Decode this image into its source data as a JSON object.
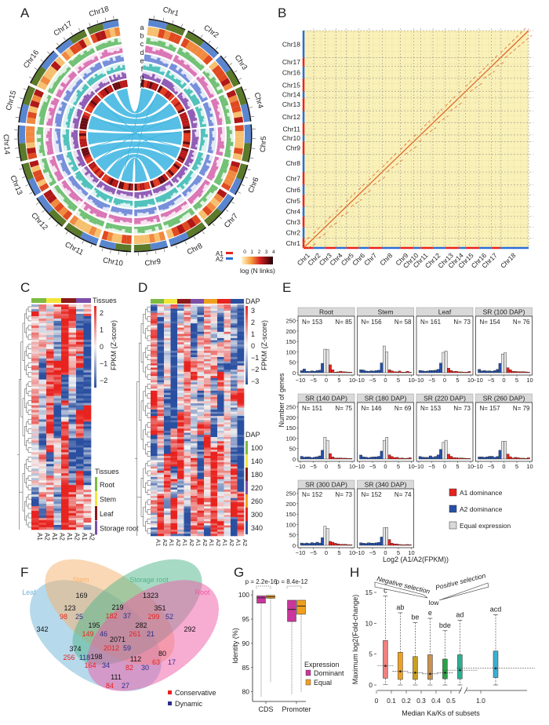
{
  "panels": [
    "A",
    "B",
    "C",
    "D",
    "E",
    "F",
    "G",
    "H"
  ],
  "chart_data": [
    {
      "panel": "A",
      "type": "circos",
      "chromosomes": [
        "Chr1",
        "Chr2",
        "Chr3",
        "Chr4",
        "Chr5",
        "Chr6",
        "Chr7",
        "Chr8",
        "Chr9",
        "Chr10",
        "Chr11",
        "Chr12",
        "Chr13",
        "Chr14",
        "Chr15",
        "Chr16",
        "Chr17",
        "Chr18"
      ],
      "track_labels": [
        "a",
        "b",
        "c",
        "d",
        "e",
        "f",
        "g",
        "h"
      ],
      "subgenome_legend": [
        {
          "name": "A1",
          "color": "#e8231f"
        },
        {
          "name": "A2",
          "color": "#2a6fd6"
        }
      ],
      "colorbar": {
        "label": "log (N links)",
        "ticks": [
          "0",
          "1",
          "2",
          "3",
          "4"
        ]
      },
      "link_color": "#3ab4e0"
    },
    {
      "panel": "B",
      "type": "scatter",
      "title": "",
      "x_ticks": [
        "Chr1",
        "Chr2",
        "Chr3",
        "Chr4",
        "Chr5",
        "Chr6",
        "Chr7",
        "Chr8",
        "Chr9",
        "Chr10",
        "Chr11",
        "Chr12",
        "Chr13",
        "Chr14",
        "Chr15",
        "Chr16",
        "Chr17",
        "Chr18"
      ],
      "y_ticks": [
        "Chr1",
        "Chr2",
        "Chr3",
        "Chr4",
        "Chr5",
        "Chr6",
        "Chr7",
        "Chr8",
        "Chr9",
        "Chr10",
        "Chr11",
        "Chr12",
        "Chr13",
        "Chr14",
        "Chr15",
        "Chr16",
        "Chr17",
        "Chr18"
      ],
      "background": "#faf1b8",
      "diagonal_color": "#e06a2a",
      "grid": true
    },
    {
      "panel": "C",
      "type": "heatmap",
      "column_labels": [
        "A1",
        "A2",
        "A1",
        "A2",
        "A1",
        "A2",
        "A1",
        "A2"
      ],
      "annotation_title": "Tissues",
      "tissue_groups": [
        {
          "name": "Root",
          "color": "#7dbb42"
        },
        {
          "name": "Stem",
          "color": "#f2e53a"
        },
        {
          "name": "Leaf",
          "color": "#8b1a1a"
        },
        {
          "name": "Storage root",
          "color": "#7b4fa8"
        }
      ],
      "colorbar": {
        "label": "FPKM (Z-score)",
        "ticks": [
          "2",
          "1",
          "0",
          "−1",
          "−2"
        ],
        "range": [
          -2.5,
          2.5
        ]
      }
    },
    {
      "panel": "D",
      "type": "heatmap",
      "column_labels": [
        "A1",
        "A2",
        "A1",
        "A2",
        "A1",
        "A2",
        "A1",
        "A2",
        "A1",
        "A2",
        "A1",
        "A2",
        "A1",
        "A2"
      ],
      "annotation_title": "DAP",
      "dap_groups": [
        {
          "name": "100",
          "color": "#7dbb42"
        },
        {
          "name": "140",
          "color": "#f2e53a"
        },
        {
          "name": "180",
          "color": "#8b1a1a"
        },
        {
          "name": "220",
          "color": "#7b4fa8"
        },
        {
          "name": "260",
          "color": "#f0a020"
        },
        {
          "name": "300",
          "color": "#e8231f"
        },
        {
          "name": "340",
          "color": "#2a4fa0"
        }
      ],
      "colorbar": {
        "label": "FPKM (Z-score)",
        "ticks": [
          "3",
          "2",
          "1",
          "0",
          "−1",
          "−2",
          "−3"
        ],
        "range": [
          -3.5,
          3.5
        ]
      }
    },
    {
      "panel": "E",
      "type": "bar",
      "xlabel": "Log2 (A1/A2(FPKM))",
      "ylabel": "Number of genes",
      "ylim": [
        0,
        260
      ],
      "y_ticks": [
        0,
        50,
        100,
        150,
        200,
        250
      ],
      "x_ticks": [
        -10,
        -5,
        0,
        5,
        10
      ],
      "bins": [
        -9.5,
        -8.5,
        -7.5,
        -6.5,
        -5.5,
        -4.5,
        -3.5,
        -2.5,
        -1.5,
        -0.5,
        0.5,
        1.5,
        2.5,
        3.5,
        4.5,
        5.5,
        6.5,
        7.5,
        8.5,
        9.5
      ],
      "legend": [
        {
          "name": "A1 dominance",
          "color": "#e8231f"
        },
        {
          "name": "A2 dominance",
          "color": "#2650a8"
        },
        {
          "name": "Equal expression",
          "color": "#d9d9d9"
        }
      ],
      "facets": [
        {
          "title": "Root",
          "n_left": "N= 153",
          "n_right": "N= 85",
          "values": [
            10,
            18,
            7,
            6,
            9,
            7,
            10,
            12,
            45,
            113,
            112,
            38,
            14,
            3,
            4,
            7,
            5,
            4,
            3,
            3
          ]
        },
        {
          "title": "Stem",
          "n_left": "N= 156",
          "n_right": "N= 58",
          "values": [
            14,
            13,
            8,
            7,
            9,
            8,
            10,
            12,
            47,
            128,
            100,
            14,
            9,
            5,
            4,
            8,
            3,
            3,
            7,
            3
          ]
        },
        {
          "title": "Leaf",
          "n_left": "N= 161",
          "n_right": "N= 73",
          "values": [
            11,
            9,
            7,
            8,
            11,
            10,
            12,
            16,
            46,
            98,
            104,
            22,
            11,
            6,
            7,
            4,
            4,
            3,
            3,
            6
          ]
        },
        {
          "title": "SR (100 DAP)",
          "n_left": "N= 154",
          "n_right": "N= 76",
          "values": [
            16,
            9,
            10,
            8,
            9,
            7,
            10,
            16,
            45,
            90,
            96,
            24,
            14,
            7,
            6,
            5,
            5,
            5,
            4,
            3
          ]
        },
        {
          "title": "SR (140 DAP)",
          "n_left": "N= 151",
          "n_right": "N= 75",
          "values": [
            13,
            9,
            10,
            10,
            6,
            9,
            11,
            15,
            42,
            105,
            90,
            26,
            10,
            5,
            5,
            5,
            4,
            4,
            3,
            3
          ]
        },
        {
          "title": "SR (180 DAP)",
          "n_left": "N= 146",
          "n_right": "N= 69",
          "values": [
            19,
            10,
            9,
            6,
            9,
            10,
            10,
            13,
            38,
            90,
            104,
            20,
            12,
            7,
            8,
            4,
            5,
            3,
            4,
            6
          ]
        },
        {
          "title": "SR (220 DAP)",
          "n_left": "N= 153",
          "n_right": "N= 73",
          "values": [
            12,
            9,
            8,
            8,
            15,
            9,
            12,
            20,
            46,
            80,
            90,
            23,
            13,
            7,
            6,
            5,
            5,
            4,
            3,
            3
          ]
        },
        {
          "title": "SR (260 DAP)",
          "n_left": "N= 157",
          "n_right": "N= 79",
          "values": [
            10,
            10,
            8,
            10,
            13,
            13,
            8,
            12,
            42,
            84,
            86,
            24,
            11,
            5,
            8,
            6,
            4,
            4,
            3,
            6
          ]
        },
        {
          "title": "SR (300 DAP)",
          "n_left": "N= 152",
          "n_right": "N= 73",
          "values": [
            11,
            9,
            11,
            9,
            13,
            10,
            15,
            11,
            37,
            92,
            82,
            19,
            15,
            10,
            7,
            5,
            5,
            5,
            3,
            3
          ]
        },
        {
          "title": "SR (340 DAP)",
          "n_left": "N= 152",
          "n_right": "N= 74",
          "values": [
            12,
            10,
            9,
            12,
            11,
            10,
            12,
            14,
            40,
            84,
            86,
            28,
            10,
            7,
            6,
            4,
            3,
            3,
            4,
            3
          ]
        }
      ]
    },
    {
      "panel": "F",
      "type": "venn",
      "sets": [
        {
          "name": "Leaf",
          "color": "#6db3d8"
        },
        {
          "name": "Stem",
          "color": "#f5b26b"
        },
        {
          "name": "Storage root",
          "color": "#4fb58a"
        },
        {
          "name": "Root",
          "color": "#f05aa5"
        }
      ],
      "legend": [
        {
          "name": "Conservative",
          "color": "#e8231f"
        },
        {
          "name": "Dynamic",
          "color": "#2a2f8a"
        }
      ],
      "regions": [
        {
          "sets": "Leaf",
          "total": "342"
        },
        {
          "sets": "Stem",
          "total": "169"
        },
        {
          "sets": "Storage root",
          "total": "1323"
        },
        {
          "sets": "Root",
          "total": "292"
        },
        {
          "sets": "Leaf∩Stem",
          "total": "123",
          "conservative": "98",
          "dynamic": "25"
        },
        {
          "sets": "Stem∩Storage root",
          "total": "219",
          "conservative": "182",
          "dynamic": "37"
        },
        {
          "sets": "Storage root∩Root",
          "total": "351",
          "conservative": "299",
          "dynamic": "52"
        },
        {
          "sets": "Leaf∩Stem∩Storage root",
          "total": "195",
          "conservative": "149",
          "dynamic": "46"
        },
        {
          "sets": "Stem∩Storage root∩Root",
          "total": "282",
          "conservative": "261",
          "dynamic": "21"
        },
        {
          "sets": "All",
          "total": "2071",
          "conservative": "2012",
          "dynamic": "59"
        },
        {
          "sets": "Leaf∩Storage root",
          "total": "374",
          "conservative": "256",
          "dynamic": "118"
        },
        {
          "sets": "Leaf∩Storage root∩Root",
          "total": "198",
          "conservative": "164",
          "dynamic": "34"
        },
        {
          "sets": "Leaf∩Stem∩Root",
          "total": "112",
          "conservative": "82",
          "dynamic": "30"
        },
        {
          "sets": "Stem∩Root",
          "total": "80",
          "conservative": "63",
          "dynamic": "17"
        },
        {
          "sets": "Leaf∩Root",
          "total": "111",
          "conservative": "84",
          "dynamic": "27"
        }
      ]
    },
    {
      "panel": "G",
      "type": "box",
      "ylabel": "Identity (%)",
      "ylim": [
        78,
        101
      ],
      "y_ticks": [
        80,
        85,
        90,
        95,
        100
      ],
      "categories": [
        "CDS",
        "Promoter"
      ],
      "p_values": [
        "p = 2.2e-16",
        "p = 8.4e-12"
      ],
      "legend_title": "Expression",
      "series": [
        {
          "name": "Dominant",
          "color": "#c8379b",
          "boxes": [
            {
              "q1": 98.3,
              "median": 99.4,
              "q3": 99.8,
              "min": 79
            },
            {
              "q1": 94.5,
              "median": 97,
              "q3": 98.9,
              "min": 79.5
            }
          ]
        },
        {
          "name": "Equal",
          "color": "#f0a020",
          "boxes": [
            {
              "q1": 99.3,
              "median": 99.6,
              "q3": 99.9,
              "min": 82
            },
            {
              "q1": 96,
              "median": 97.7,
              "q3": 98.9,
              "min": 80
            }
          ]
        }
      ]
    },
    {
      "panel": "H",
      "type": "box",
      "xlabel": "Median Ka/Ks of subsets",
      "ylabel": "Maximum log2(Fold-change)",
      "ylim": [
        0,
        15
      ],
      "y_ticks": [
        0,
        5,
        10,
        15
      ],
      "x_ticks": [
        "0",
        "0.1",
        "0.2",
        "0.3",
        "0.4",
        "0.5",
        "1.0"
      ],
      "annotations": {
        "negative": "Negative selection",
        "positive": "Positive selection",
        "low": "low"
      },
      "boxes": [
        {
          "x": 0.06,
          "letter": "c",
          "color": "#f08080",
          "q1": 1.1,
          "median": 3.1,
          "q3": 7.2,
          "max": 14.4,
          "min": 0.1
        },
        {
          "x": 0.16,
          "letter": "ab",
          "color": "#f0a020",
          "q1": 0.9,
          "median": 2.2,
          "q3": 5.3,
          "max": 11.7,
          "min": 0
        },
        {
          "x": 0.26,
          "letter": "be",
          "color": "#c9a020",
          "q1": 0.9,
          "median": 2.0,
          "q3": 4.6,
          "max": 10.1,
          "min": 0
        },
        {
          "x": 0.36,
          "letter": "e",
          "color": "#c89050",
          "q1": 0.9,
          "median": 1.8,
          "q3": 4.9,
          "max": 10.8,
          "min": 0
        },
        {
          "x": 0.46,
          "letter": "bde",
          "color": "#2ca048",
          "q1": 1.0,
          "median": 2.0,
          "q3": 4.2,
          "max": 8.8,
          "min": 0
        },
        {
          "x": 0.56,
          "letter": "ad",
          "color": "#2ab090",
          "q1": 1.0,
          "median": 2.4,
          "q3": 4.9,
          "max": 10.5,
          "min": 0
        },
        {
          "x": 1.1,
          "letter": "acd",
          "color": "#38b0d0",
          "q1": 1.2,
          "median": 2.7,
          "q3": 5.5,
          "max": 11.4,
          "min": 0
        }
      ]
    }
  ]
}
